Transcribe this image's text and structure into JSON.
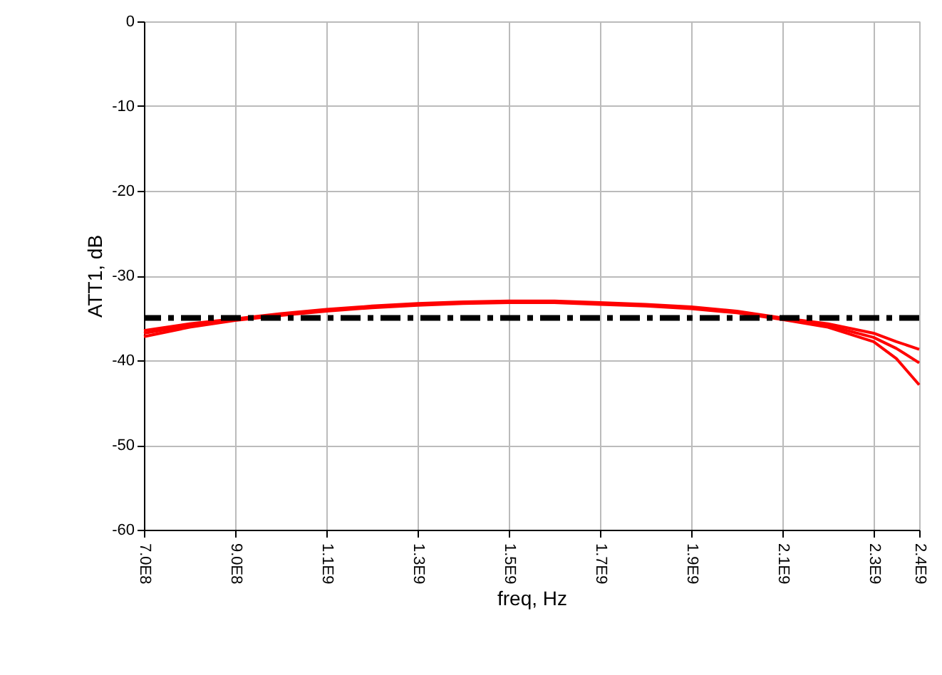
{
  "chart_data": {
    "type": "line",
    "xlabel": "freq, Hz",
    "ylabel": "ATT1, dB",
    "x": [
      700000000,
      800000000,
      900000000,
      1000000000,
      1100000000,
      1200000000,
      1300000000,
      1400000000,
      1500000000,
      1600000000,
      1700000000,
      1800000000,
      1900000000,
      2000000000,
      2100000000,
      2200000000,
      2300000000,
      2350000000,
      2400000000
    ],
    "series": [
      {
        "color": "#ff0000",
        "values": [
          -36.5,
          -35.7,
          -35.1,
          -34.5,
          -34.0,
          -33.6,
          -33.3,
          -33.1,
          -33.0,
          -33.0,
          -33.2,
          -33.4,
          -33.7,
          -34.2,
          -35.0,
          -35.7,
          -36.8,
          -37.8,
          -38.7
        ]
      },
      {
        "color": "#ff0000",
        "values": [
          -36.8,
          -35.9,
          -35.2,
          -34.6,
          -34.1,
          -33.7,
          -33.4,
          -33.2,
          -33.1,
          -33.1,
          -33.3,
          -33.5,
          -33.8,
          -34.3,
          -35.1,
          -35.9,
          -37.3,
          -38.6,
          -40.3
        ]
      },
      {
        "color": "#ff0000",
        "values": [
          -37.2,
          -36.1,
          -35.3,
          -34.7,
          -34.2,
          -33.8,
          -33.5,
          -33.3,
          -33.2,
          -33.2,
          -33.4,
          -33.6,
          -33.9,
          -34.4,
          -35.2,
          -36.1,
          -37.8,
          -39.8,
          -42.9
        ]
      }
    ],
    "xlim": [
      700000000,
      2400000000
    ],
    "xticks": [
      {
        "value": 700000000,
        "label": "7.0E8"
      },
      {
        "value": 900000000,
        "label": "9.0E8"
      },
      {
        "value": 1100000000,
        "label": "1.1E9"
      },
      {
        "value": 1300000000,
        "label": "1.3E9"
      },
      {
        "value": 1500000000,
        "label": "1.5E9"
      },
      {
        "value": 1700000000,
        "label": "1.7E9"
      },
      {
        "value": 1900000000,
        "label": "1.9E9"
      },
      {
        "value": 2100000000,
        "label": "2.1E9"
      },
      {
        "value": 2300000000,
        "label": "2.3E9"
      },
      {
        "value": 2400000000,
        "label": "2.4E9"
      }
    ],
    "ylim": [
      -60,
      0
    ],
    "yticks": [
      -60,
      -50,
      -40,
      -30,
      -20,
      -10,
      0
    ],
    "ref_lines": [
      {
        "axis": "y",
        "value": -35,
        "color": "#000000",
        "line_style": "dashed"
      }
    ],
    "grid": true
  }
}
